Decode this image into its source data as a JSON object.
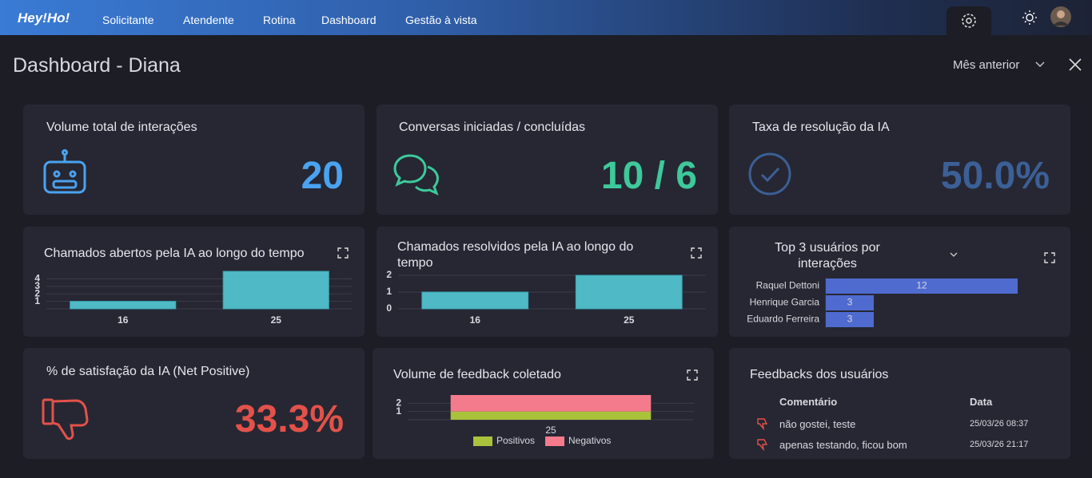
{
  "nav": {
    "brand": "Hey!Ho!",
    "items": [
      "Solicitante",
      "Atendente",
      "Rotina",
      "Dashboard",
      "Gestão à vista"
    ]
  },
  "header": {
    "title": "Dashboard - Diana",
    "period": "Mês anterior"
  },
  "kpis": [
    {
      "title": "Volume total de interações",
      "value": "20",
      "color": "#4aa3f0"
    },
    {
      "title": "Conversas iniciadas / concluídas",
      "value": "10 / 6",
      "color": "#3ec99b"
    },
    {
      "title": "Taxa de resolução da IA",
      "value": "50.0%",
      "color": "#3c5f96"
    },
    {
      "title": "% de satisfação da IA (Net Positive)",
      "value": "33.3%",
      "color": "#e2524a"
    }
  ],
  "charts": [
    {
      "type": "bar",
      "title": "Chamados abertos pela IA ao longo do tempo",
      "categories": [
        "16",
        "25"
      ],
      "values": [
        1,
        5
      ],
      "color": "#4fbac6",
      "ylim": [
        0,
        5
      ],
      "yticks": [
        1,
        2,
        3,
        4
      ],
      "grid": true
    },
    {
      "type": "bar",
      "title": "Chamados resolvidos pela IA ao longo do tempo",
      "categories": [
        "16",
        "25"
      ],
      "values": [
        1,
        2
      ],
      "color": "#4fbac6",
      "ylim": [
        0,
        2
      ],
      "yticks": [
        0,
        1,
        2
      ],
      "grid": true
    },
    {
      "type": "barh",
      "title": "Top 3 usuários por interações",
      "categories": [
        "Raquel Dettoni",
        "Henrique Garcia",
        "Eduardo Ferreira"
      ],
      "values": [
        12,
        3,
        3
      ],
      "color": "#4f6bd0",
      "xlim": [
        0,
        14
      ]
    },
    {
      "type": "stacked_bar",
      "title": "Volume de feedback coletado",
      "categories": [
        "25"
      ],
      "series": [
        {
          "name": "Positivos",
          "color": "#a9c23b",
          "values": [
            1
          ]
        },
        {
          "name": "Negativos",
          "color": "#f47b8b",
          "values": [
            2
          ]
        }
      ],
      "ylim": [
        0,
        3
      ],
      "yticks": [
        1,
        2
      ],
      "grid": true
    }
  ],
  "feedback": {
    "title": "Feedbacks dos usuários",
    "columns": [
      "Comentário",
      "Data"
    ],
    "rows": [
      [
        "não gostei, teste",
        "25/03/26 08:37"
      ],
      [
        "apenas testando, ficou bom",
        "25/03/26 21:17"
      ]
    ]
  }
}
